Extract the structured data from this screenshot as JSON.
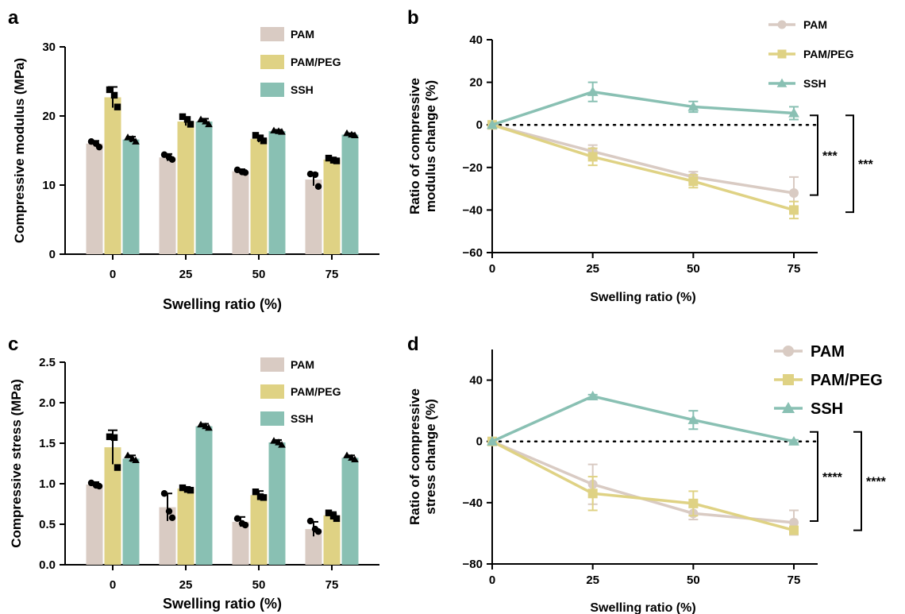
{
  "colors": {
    "PAM": "#d9cbc3",
    "PAM/PEG": "#dfd284",
    "SSH": "#89c0b3",
    "axis": "#000000"
  },
  "chart_data": [
    {
      "panel": "a",
      "type": "bar",
      "xlabel": "Swelling ratio (%)",
      "ylabel": "Compressive modulus (MPa)",
      "categories": [
        "0",
        "25",
        "50",
        "75"
      ],
      "ylim": [
        0,
        30
      ],
      "yticks": [
        "0",
        "10",
        "20",
        "30"
      ],
      "legend_position": "top-right",
      "series": [
        {
          "name": "PAM",
          "values": [
            16.0,
            14.0,
            12.0,
            10.8
          ],
          "errors": [
            0.4,
            0.5,
            0.3,
            0.9
          ],
          "points": [
            [
              16.3,
              16.0,
              15.5
            ],
            [
              14.4,
              14.0,
              13.7
            ],
            [
              12.2,
              11.9,
              11.8
            ],
            [
              11.6,
              11.5,
              9.8
            ]
          ]
        },
        {
          "name": "PAM/PEG",
          "values": [
            22.7,
            19.2,
            16.7,
            13.7
          ],
          "errors": [
            1.5,
            0.6,
            0.5,
            0.3
          ],
          "points": [
            [
              23.8,
              23.0,
              21.3
            ],
            [
              19.9,
              19.5,
              18.8
            ],
            [
              17.2,
              16.8,
              16.4
            ],
            [
              13.9,
              13.6,
              13.5
            ]
          ]
        },
        {
          "name": "SSH",
          "values": [
            16.6,
            19.2,
            17.8,
            17.3
          ],
          "errors": [
            0.4,
            0.4,
            0.2,
            0.2
          ],
          "points": [
            [
              16.9,
              16.7,
              16.3
            ],
            [
              19.5,
              19.2,
              18.8
            ],
            [
              17.9,
              17.8,
              17.7
            ],
            [
              17.5,
              17.3,
              17.2
            ]
          ]
        }
      ]
    },
    {
      "panel": "b",
      "type": "line",
      "xlabel": "Swelling ratio (%)",
      "ylabel_lines": [
        "Ratio of compressive",
        "modulus change (%)"
      ],
      "x": [
        0,
        25,
        50,
        75
      ],
      "xticks": [
        "0",
        "25",
        "50",
        "75"
      ],
      "ylim": [
        -60,
        40
      ],
      "yticks": [
        "−60",
        "−40",
        "−20",
        "0",
        "20",
        "40"
      ],
      "reference_line": 0,
      "legend_position": "top-right",
      "series": [
        {
          "name": "PAM",
          "marker": "circle",
          "values": [
            0,
            -12.5,
            -24.5,
            -32
          ],
          "errors": [
            0,
            3,
            2.5,
            7.5
          ]
        },
        {
          "name": "PAM/PEG",
          "marker": "square",
          "values": [
            0,
            -15,
            -26.5,
            -40
          ],
          "errors": [
            0,
            4,
            3,
            4
          ]
        },
        {
          "name": "SSH",
          "marker": "triangle",
          "values": [
            0,
            15.5,
            8.5,
            5.5
          ],
          "errors": [
            0,
            4.5,
            2.5,
            3
          ]
        }
      ],
      "significance": [
        {
          "label": "***",
          "from": 0,
          "to": -33
        },
        {
          "label": "***",
          "from": 0,
          "to": -41
        }
      ]
    },
    {
      "panel": "c",
      "type": "bar",
      "xlabel": "Swelling ratio (%)",
      "ylabel": "Compressive stress (MPa)",
      "categories": [
        "0",
        "25",
        "50",
        "75"
      ],
      "ylim": [
        0,
        2.5
      ],
      "yticks": [
        "0.0",
        "0.5",
        "1.0",
        "1.5",
        "2.0",
        "2.5"
      ],
      "legend_position": "top-right",
      "series": [
        {
          "name": "PAM",
          "values": [
            0.99,
            0.71,
            0.53,
            0.44
          ],
          "errors": [
            0.03,
            0.17,
            0.06,
            0.09
          ],
          "points": [
            [
              1.01,
              0.98,
              0.97
            ],
            [
              0.88,
              0.66,
              0.58
            ],
            [
              0.57,
              0.51,
              0.49
            ],
            [
              0.54,
              0.44,
              0.41
            ]
          ]
        },
        {
          "name": "PAM/PEG",
          "values": [
            1.45,
            0.94,
            0.86,
            0.61
          ],
          "errors": [
            0.21,
            0.02,
            0.05,
            0.04
          ],
          "points": [
            [
              1.58,
              1.57,
              1.2
            ],
            [
              0.95,
              0.93,
              0.92
            ],
            [
              0.9,
              0.84,
              0.83
            ],
            [
              0.64,
              0.6,
              0.57
            ]
          ]
        },
        {
          "name": "SSH",
          "values": [
            1.31,
            1.71,
            1.51,
            1.32
          ],
          "errors": [
            0.04,
            0.03,
            0.03,
            0.03
          ],
          "points": [
            [
              1.35,
              1.31,
              1.29
            ],
            [
              1.73,
              1.71,
              1.69
            ],
            [
              1.53,
              1.51,
              1.48
            ],
            [
              1.35,
              1.32,
              1.3
            ]
          ]
        }
      ]
    },
    {
      "panel": "d",
      "type": "line",
      "xlabel": "Swelling ratio (%)",
      "ylabel_lines": [
        "Ratio of compressive",
        "stress change (%)"
      ],
      "x": [
        0,
        25,
        50,
        75
      ],
      "xticks": [
        "0",
        "25",
        "50",
        "75"
      ],
      "ylim": [
        -80,
        60
      ],
      "yticks": [
        "−80",
        "−40",
        "0",
        "40"
      ],
      "reference_line": 0,
      "legend_position": "top-right",
      "series": [
        {
          "name": "PAM",
          "marker": "circle",
          "values": [
            0,
            -28,
            -47,
            -53
          ],
          "errors": [
            0,
            13,
            4,
            8
          ]
        },
        {
          "name": "PAM/PEG",
          "marker": "square",
          "values": [
            0,
            -34,
            -40.5,
            -58
          ],
          "errors": [
            0,
            11,
            8,
            2
          ]
        },
        {
          "name": "SSH",
          "marker": "triangle",
          "values": [
            0,
            29.5,
            14,
            0
          ],
          "errors": [
            0,
            1,
            6,
            1
          ]
        }
      ],
      "significance": [
        {
          "label": "****",
          "from": 0,
          "to": -52
        },
        {
          "label": "****",
          "from": 0,
          "to": -58
        }
      ]
    }
  ]
}
